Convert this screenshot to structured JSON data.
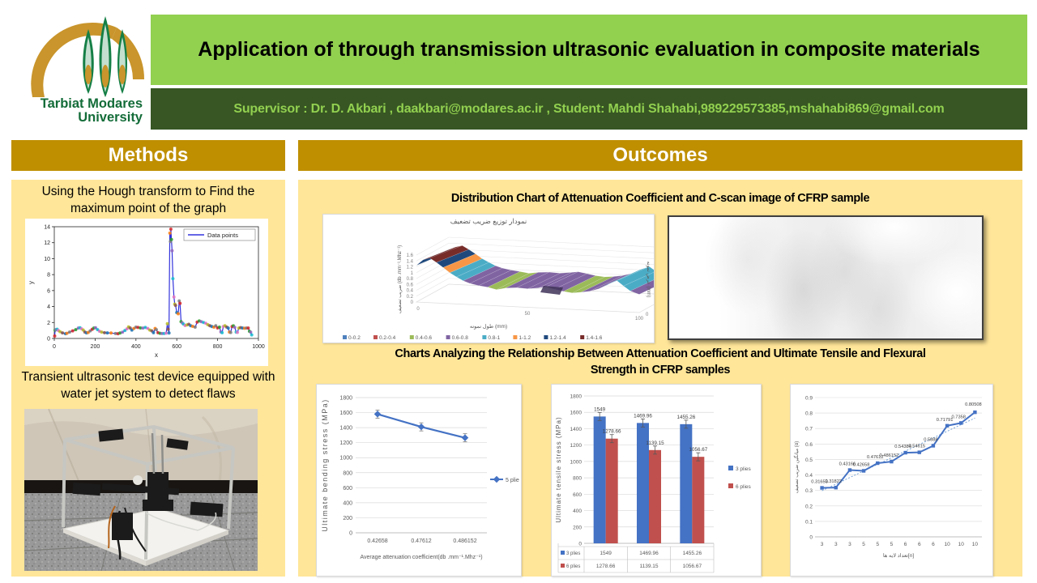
{
  "header": {
    "title": "Application of through transmission ultrasonic evaluation in composite materials",
    "supervisor_line": "Supervisor : Dr. D. Akbari , daakbari@modares.ac.ir , Student: Mahdi Shahabi,989229573385,mshahabi869@gmail.com",
    "logo": {
      "line1": "Tarbiat Modares",
      "line2": "University"
    },
    "colors": {
      "title_bg": "#92d050",
      "supervisor_bg": "#375623",
      "supervisor_text": "#92d050"
    }
  },
  "sections": {
    "methods": {
      "label": "Methods",
      "caption_hough": "Using the Hough transform to Find the maximum point of the graph",
      "caption_device": "Transient ultrasonic test device equipped with water jet system to detect flaws"
    },
    "outcomes": {
      "label": "Outcomes",
      "caption_distribution": "Distribution Chart of  Attenuation Coefficient and C-scan image of CFRP sample",
      "caption_charts": "Charts Analyzing the Relationship Between Attenuation Coefficient and Ultimate Tensile and Flexural Strength in CFRP samples"
    }
  },
  "colors": {
    "section_header_bg": "#bf8f00",
    "panel_bg": "#ffe699",
    "excel_blue": "#4472c4",
    "excel_red": "#c0504d"
  },
  "chart_data": [
    {
      "id": "hough",
      "type": "line",
      "xlabel": "x",
      "ylabel": "y",
      "xlim": [
        0,
        1000
      ],
      "ylim": [
        0,
        14
      ],
      "xticks": [
        0,
        200,
        400,
        600,
        800,
        1000
      ],
      "yticks": [
        0,
        2,
        4,
        6,
        8,
        10,
        12,
        14
      ],
      "legend": [
        "Data points"
      ],
      "line_color": "#3333dd",
      "marker_palette": [
        "#d62728",
        "#2ca02c",
        "#9467bd",
        "#17becf",
        "#e377c2",
        "#bcbd22",
        "#8c564b",
        "#1f77b4",
        "#ff7f0e",
        "#7f7f7f"
      ],
      "points": [
        [
          2,
          0.3
        ],
        [
          4,
          1.05
        ],
        [
          8,
          1.1
        ],
        [
          14,
          1.15
        ],
        [
          20,
          1.0
        ],
        [
          28,
          0.85
        ],
        [
          40,
          0.7
        ],
        [
          55,
          0.6
        ],
        [
          62,
          0.65
        ],
        [
          75,
          0.8
        ],
        [
          90,
          0.95
        ],
        [
          105,
          1.1
        ],
        [
          118,
          1.3
        ],
        [
          126,
          1.35
        ],
        [
          134,
          1.2
        ],
        [
          142,
          1.05
        ],
        [
          150,
          0.8
        ],
        [
          158,
          0.7
        ],
        [
          166,
          0.75
        ],
        [
          176,
          0.95
        ],
        [
          186,
          1.15
        ],
        [
          194,
          1.3
        ],
        [
          202,
          1.35
        ],
        [
          212,
          1.1
        ],
        [
          222,
          0.9
        ],
        [
          232,
          0.8
        ],
        [
          246,
          0.72
        ],
        [
          260,
          0.7
        ],
        [
          278,
          0.68
        ],
        [
          300,
          0.62
        ],
        [
          312,
          0.6
        ],
        [
          322,
          0.68
        ],
        [
          334,
          0.78
        ],
        [
          346,
          1.0
        ],
        [
          356,
          1.2
        ],
        [
          364,
          1.45
        ],
        [
          372,
          1.3
        ],
        [
          380,
          1.05
        ],
        [
          390,
          1.25
        ],
        [
          400,
          1.42
        ],
        [
          410,
          1.38
        ],
        [
          422,
          1.32
        ],
        [
          434,
          1.3
        ],
        [
          446,
          1.38
        ],
        [
          458,
          1.25
        ],
        [
          468,
          1.05
        ],
        [
          478,
          0.95
        ],
        [
          486,
          0.72
        ],
        [
          494,
          1.25
        ],
        [
          500,
          1.1
        ],
        [
          508,
          0.72
        ],
        [
          518,
          0.65
        ],
        [
          528,
          0.62
        ],
        [
          538,
          0.62
        ],
        [
          548,
          0.66
        ],
        [
          554,
          1.85
        ],
        [
          558,
          1.15
        ],
        [
          562,
          0.68
        ],
        [
          566,
          13.2
        ],
        [
          569,
          12.15
        ],
        [
          571,
          13.7
        ],
        [
          574,
          12.4
        ],
        [
          577,
          11.0
        ],
        [
          581,
          7.5
        ],
        [
          586,
          5.2
        ],
        [
          590,
          4.3
        ],
        [
          594,
          4.15
        ],
        [
          600,
          3.25
        ],
        [
          607,
          3.1
        ],
        [
          612,
          4.7
        ],
        [
          616,
          4.4
        ],
        [
          621,
          2.1
        ],
        [
          627,
          1.95
        ],
        [
          633,
          1.8
        ],
        [
          641,
          1.62
        ],
        [
          650,
          1.7
        ],
        [
          659,
          1.78
        ],
        [
          668,
          1.6
        ],
        [
          678,
          1.52
        ],
        [
          690,
          1.42
        ],
        [
          700,
          2.05
        ],
        [
          710,
          2.2
        ],
        [
          720,
          2.1
        ],
        [
          731,
          2.0
        ],
        [
          742,
          1.9
        ],
        [
          752,
          1.72
        ],
        [
          762,
          1.6
        ],
        [
          772,
          1.5
        ],
        [
          782,
          1.42
        ],
        [
          791,
          1.6
        ],
        [
          800,
          1.32
        ],
        [
          809,
          1.42
        ],
        [
          816,
          0.82
        ],
        [
          822,
          0.72
        ],
        [
          828,
          1.5
        ],
        [
          836,
          1.6
        ],
        [
          845,
          1.42
        ],
        [
          852,
          1.3
        ],
        [
          858,
          0.8
        ],
        [
          864,
          0.75
        ],
        [
          871,
          1.5
        ],
        [
          877,
          1.58
        ],
        [
          884,
          1.4
        ],
        [
          891,
          0.8
        ],
        [
          897,
          0.76
        ],
        [
          904,
          1.3
        ],
        [
          913,
          1.36
        ],
        [
          922,
          1.3
        ],
        [
          932,
          1.28
        ],
        [
          941,
          1.3
        ],
        [
          950,
          1.3
        ],
        [
          956,
          0.9
        ],
        [
          962,
          0.78
        ],
        [
          967,
          0.45
        ]
      ]
    },
    {
      "id": "attenuation_surface",
      "type": "surface",
      "title": "نمودار توزیع ضریب تضعیف",
      "ylabel": "ضریب تضعیف (db .mm⁻¹.Mhz⁻¹)",
      "xlabel": "طول نمونه (mm)",
      "zlabel": "عرض نمونه (mm)",
      "yticks": [
        0,
        0.2,
        0.4,
        0.6,
        0.8,
        1,
        1.2,
        1.4,
        1.6
      ],
      "xticks": [
        0,
        50,
        100
      ],
      "zticks": [
        0,
        13
      ],
      "legend": [
        {
          "label": "0-0.2",
          "color": "#4f81bd"
        },
        {
          "label": "0.2-0.4",
          "color": "#c0504d"
        },
        {
          "label": "0.4-0.6",
          "color": "#9bbb59"
        },
        {
          "label": "0.6-0.8",
          "color": "#8064a2"
        },
        {
          "label": "0.8-1",
          "color": "#4bacc6"
        },
        {
          "label": "1-1.2",
          "color": "#f79646"
        },
        {
          "label": "1.2-1.4",
          "color": "#1f497d"
        },
        {
          "label": "1.4-1.6",
          "color": "#772c2a"
        }
      ],
      "profile": [
        [
          0,
          1.25
        ],
        [
          3,
          1.45
        ],
        [
          6,
          1.52
        ],
        [
          9,
          1.38
        ],
        [
          12,
          1.22
        ],
        [
          15,
          1.05
        ],
        [
          18,
          0.92
        ],
        [
          21,
          0.8
        ],
        [
          24,
          0.72
        ],
        [
          28,
          0.66
        ],
        [
          32,
          0.62
        ],
        [
          36,
          0.55
        ],
        [
          40,
          0.62
        ],
        [
          45,
          0.65
        ],
        [
          50,
          0.63
        ],
        [
          55,
          0.68
        ],
        [
          58,
          0.72
        ],
        [
          62,
          0.66
        ],
        [
          66,
          0.6
        ],
        [
          70,
          0.56
        ],
        [
          74,
          0.6
        ],
        [
          78,
          0.65
        ],
        [
          82,
          0.75
        ],
        [
          86,
          0.92
        ],
        [
          90,
          1.05
        ],
        [
          93,
          0.88
        ],
        [
          96,
          0.72
        ],
        [
          100,
          0.62
        ]
      ]
    },
    {
      "id": "bending",
      "type": "line",
      "categories": [
        "0.42658",
        "0.47612",
        "0.486152"
      ],
      "series": [
        {
          "name": "5 plies",
          "values": [
            1580,
            1410,
            1265
          ],
          "color": "#4472c4"
        }
      ],
      "ylabel": "Ultimate bending  stress (MPa)",
      "xlabel": "Average attenuation coefficient(db .mm⁻¹.Mhz⁻¹)",
      "ylim": [
        0,
        1800
      ],
      "ytick_step": 200
    },
    {
      "id": "tensile",
      "type": "bar",
      "categories": [
        "",
        "",
        ""
      ],
      "series": [
        {
          "name": "3 plies",
          "color": "#4472c4",
          "values": [
            1549,
            1469.96,
            1455.26
          ],
          "labels": [
            "1549",
            "1469.96",
            "1455.26"
          ]
        },
        {
          "name": "6 plies",
          "color": "#c0504d",
          "values": [
            1278.66,
            1139.15,
            1056.67
          ],
          "labels": [
            "1278.66",
            "1139.15",
            "1056.67"
          ]
        }
      ],
      "ylabel": "Ultimate tensile stress (MPa)",
      "ylim": [
        0,
        1800
      ],
      "ytick_step": 200,
      "table_rows": [
        {
          "key": "3 plies",
          "color": "#4472c4",
          "values": [
            "1549",
            "1469.96",
            "1455.26"
          ]
        },
        {
          "key": "6 plies",
          "color": "#c0504d",
          "values": [
            "1278.66",
            "1139.15",
            "1056.67"
          ]
        }
      ]
    },
    {
      "id": "alpha_layers",
      "type": "scatter-line",
      "x_labels": [
        "3",
        "3",
        "3",
        "5",
        "5",
        "5",
        "6",
        "6",
        "6",
        "10",
        "10",
        "10"
      ],
      "values": [
        0.31653,
        0.31822,
        0.43166,
        0.42658,
        0.47612,
        0.486152,
        0.54384,
        0.54615,
        0.5888,
        0.71791,
        0.7358,
        0.80508
      ],
      "labels": [
        "0.31653",
        "0.31822",
        "0.43166",
        "0.42658",
        "0.47612",
        "0.486152",
        "0.54384",
        "0.54615",
        "0.5888",
        "0.71791",
        "0.7358",
        "0.80508"
      ],
      "ylabel": "میانگین ضریب تضعیف (α)",
      "xlabel": "تعداد لایه ها[n]",
      "ylim": [
        0,
        0.9
      ],
      "ytick_step": 0.1,
      "trendline": true,
      "color": "#4472c4"
    }
  ]
}
